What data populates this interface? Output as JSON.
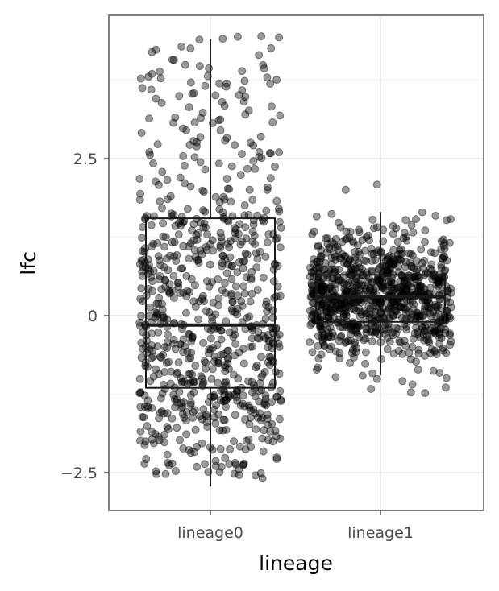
{
  "chart_data": {
    "type": "boxplot-with-jitter",
    "xlabel": "lineage",
    "ylabel": "lfc",
    "categories": [
      "lineage0",
      "lineage1"
    ],
    "ylim": [
      -3.15,
      4.75
    ],
    "yticks": [
      -2.5,
      0,
      2.5
    ],
    "ytick_labels": [
      "−2.5",
      "0",
      "2.5"
    ],
    "grid": true,
    "point_color": "#000000",
    "point_alpha": 0.4,
    "boxes": [
      {
        "category": "lineage0",
        "whisker_low": -2.72,
        "q1": -1.15,
        "median": -0.15,
        "q3": 1.55,
        "whisker_high": 4.4,
        "n_points": 800,
        "jitter_min": -2.75,
        "jitter_max": 4.45
      },
      {
        "category": "lineage1",
        "whisker_low": -0.95,
        "q1": -0.1,
        "median": 0.3,
        "q3": 0.65,
        "whisker_high": 1.65,
        "n_points": 900,
        "jitter_min": -1.45,
        "jitter_max": 2.1
      }
    ]
  }
}
